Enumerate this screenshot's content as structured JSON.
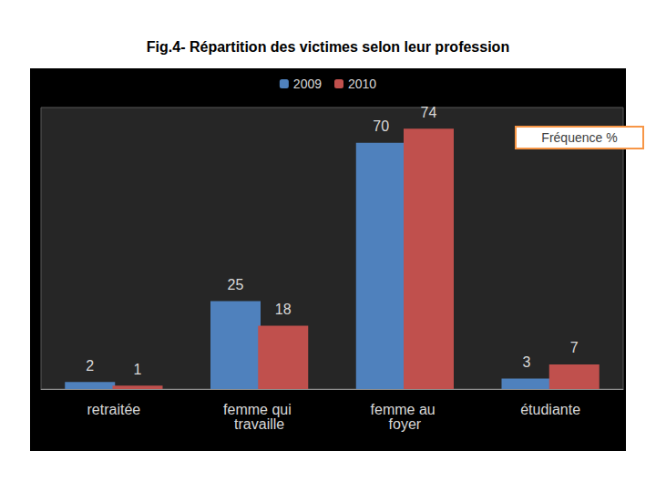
{
  "chart_data": {
    "type": "bar",
    "title": "Fig.4- Répartition des victimes selon leur profession",
    "annotation": "Fréquence %",
    "categories": [
      "retraitée",
      "femme qui travaille",
      "femme au foyer",
      "étudiante"
    ],
    "series": [
      {
        "name": "2009",
        "color": "#4f81bd",
        "values": [
          2,
          25,
          70,
          3
        ]
      },
      {
        "name": "2010",
        "color": "#c0504d",
        "values": [
          1,
          18,
          74,
          7
        ]
      }
    ],
    "ylim": [
      0,
      80
    ],
    "grid": false,
    "legend": "top",
    "data_labels": true,
    "tick_labels": "x"
  }
}
